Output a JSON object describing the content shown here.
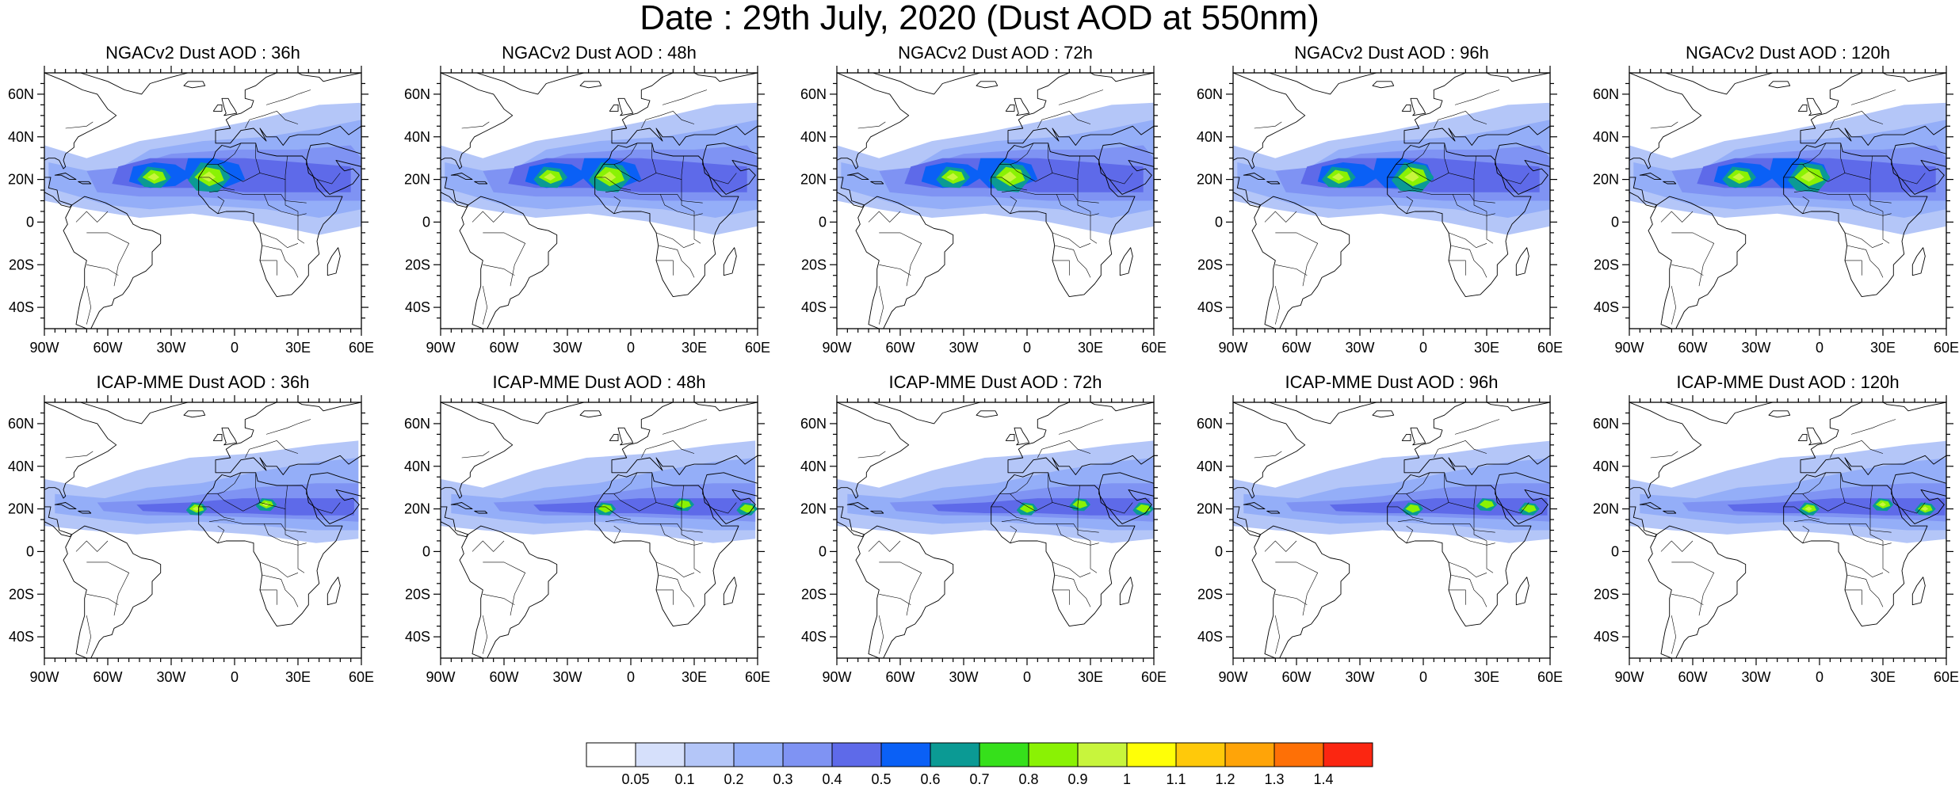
{
  "title": "Date : 29th July, 2020 (Dust AOD at 550nm)",
  "axes": {
    "lon_ticks": [
      "90W",
      "60W",
      "30W",
      "0",
      "30E",
      "60E"
    ],
    "lat_ticks": [
      "60N",
      "40N",
      "20N",
      "0",
      "20S",
      "40S"
    ],
    "lon_range": [
      -90,
      60
    ],
    "lat_range": [
      -50,
      70
    ]
  },
  "panels": [
    {
      "title": "NGACv2 Dust AOD : 36h",
      "model": "NGACv2",
      "lead": 36,
      "plume_lon": -12,
      "core_lons": [
        -38,
        -12
      ],
      "max_level": 0.9
    },
    {
      "title": "NGACv2 Dust AOD : 48h",
      "model": "NGACv2",
      "lead": 48,
      "plume_lon": -10,
      "core_lons": [
        -38,
        -10
      ],
      "max_level": 0.9
    },
    {
      "title": "NGACv2 Dust AOD : 72h",
      "model": "NGACv2",
      "lead": 72,
      "plume_lon": -8,
      "core_lons": [
        -35,
        -8
      ],
      "max_level": 0.9
    },
    {
      "title": "NGACv2 Dust AOD : 96h",
      "model": "NGACv2",
      "lead": 96,
      "plume_lon": -5,
      "core_lons": [
        -40,
        -5
      ],
      "max_level": 0.9
    },
    {
      "title": "NGACv2 Dust AOD : 120h",
      "model": "NGACv2",
      "lead": 120,
      "plume_lon": -5,
      "core_lons": [
        -38,
        -5
      ],
      "max_level": 0.9
    },
    {
      "title": "ICAP-MME Dust AOD : 36h",
      "model": "ICAP-MME",
      "lead": 36,
      "plume_lon": -20,
      "core_lons": [
        -18,
        15
      ],
      "max_level": 0.9
    },
    {
      "title": "ICAP-MME Dust AOD : 48h",
      "model": "ICAP-MME",
      "lead": 48,
      "plume_lon": -15,
      "core_lons": [
        -12,
        25,
        55
      ],
      "max_level": 0.8
    },
    {
      "title": "ICAP-MME Dust AOD : 72h",
      "model": "ICAP-MME",
      "lead": 72,
      "plume_lon": 0,
      "core_lons": [
        0,
        25,
        55
      ],
      "max_level": 0.8
    },
    {
      "title": "ICAP-MME Dust AOD : 96h",
      "model": "ICAP-MME",
      "lead": 96,
      "plume_lon": 10,
      "core_lons": [
        -5,
        30,
        50
      ],
      "max_level": 0.8
    },
    {
      "title": "ICAP-MME Dust AOD : 120h",
      "model": "ICAP-MME",
      "lead": 120,
      "plume_lon": 20,
      "core_lons": [
        -5,
        30,
        50
      ],
      "max_level": 0.9
    }
  ],
  "colorbar": {
    "levels": [
      "0.05",
      "0.1",
      "0.2",
      "0.3",
      "0.4",
      "0.5",
      "0.6",
      "0.7",
      "0.8",
      "0.9",
      "1",
      "1.1",
      "1.2",
      "1.3",
      "1.4"
    ],
    "colors": [
      "#ffffff",
      "#d6e0fb",
      "#b4c6f8",
      "#94aef8",
      "#7f93f3",
      "#5e6ae9",
      "#0a60f6",
      "#0b9a94",
      "#36e01b",
      "#8af204",
      "#c8f53c",
      "#ffff07",
      "#ffc90a",
      "#ffa408",
      "#fe7006",
      "#fb2611"
    ]
  }
}
